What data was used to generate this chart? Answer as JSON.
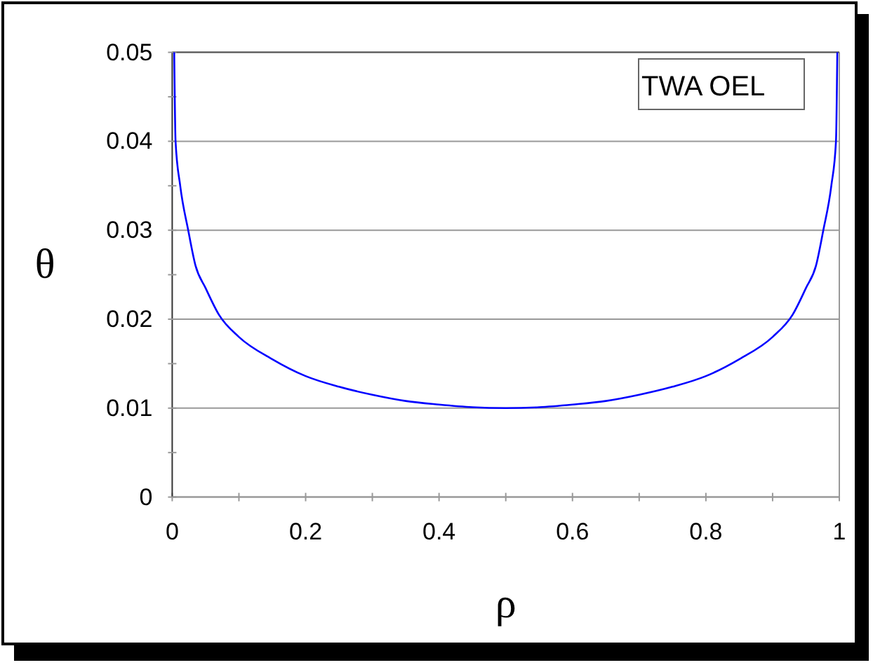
{
  "chart_data": {
    "type": "line",
    "xlabel": "ρ",
    "ylabel": "θ",
    "annotations": [
      "TWA OEL"
    ],
    "x": [
      0.003,
      0.005,
      0.012,
      0.024,
      0.035,
      0.05,
      0.07,
      0.1,
      0.15,
      0.2,
      0.25,
      0.3,
      0.35,
      0.4,
      0.45,
      0.5,
      0.55,
      0.6,
      0.65,
      0.7,
      0.75,
      0.8,
      0.85,
      0.9,
      0.93,
      0.95,
      0.965,
      0.976,
      0.988,
      0.995,
      0.997
    ],
    "series": [
      {
        "color": "#0000ff",
        "values": [
          0.05,
          0.04,
          0.035,
          0.03,
          0.026,
          0.0235,
          0.0205,
          0.018,
          0.0155,
          0.0136,
          0.0124,
          0.0115,
          0.0108,
          0.0104,
          0.0101,
          0.01,
          0.0101,
          0.0104,
          0.0108,
          0.0115,
          0.0124,
          0.0136,
          0.0155,
          0.018,
          0.0205,
          0.0235,
          0.026,
          0.03,
          0.035,
          0.04,
          0.05
        ]
      }
    ],
    "xlim": [
      0,
      1
    ],
    "ylim": [
      0,
      0.05
    ],
    "xticks": [
      0,
      {
        "value": 0.1,
        "label": null
      },
      0.2,
      {
        "value": 0.3,
        "label": null
      },
      0.4,
      {
        "value": 0.5,
        "label": null
      },
      0.6,
      {
        "value": 0.7,
        "label": null
      },
      0.8,
      {
        "value": 0.9,
        "label": null
      },
      1
    ],
    "yticks": [
      0,
      {
        "value": 0.005,
        "label": null
      },
      0.01,
      {
        "value": 0.015,
        "label": null
      },
      0.02,
      {
        "value": 0.025,
        "label": null
      },
      0.03,
      {
        "value": 0.035,
        "label": null
      },
      0.04,
      {
        "value": 0.045,
        "label": null
      },
      0.05
    ],
    "grid": "y",
    "marker": "none",
    "line_style": "solid"
  }
}
